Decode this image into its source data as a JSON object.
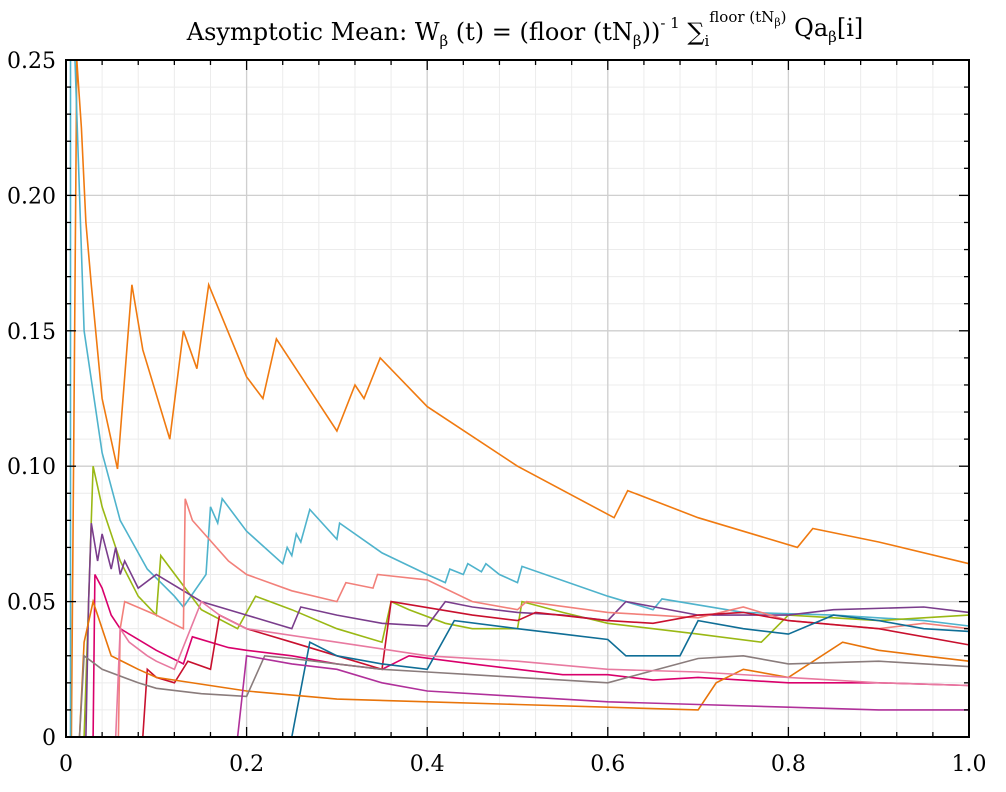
{
  "chart_data": {
    "type": "line",
    "title": {
      "main": "Asymptotic Mean: W",
      "w_sub": "β",
      "part2": " (t) = (floor (tN",
      "n_sub": "β",
      "part3": "))",
      "exp": "- 1",
      "sigma": " ∑",
      "i_sub": "i",
      "sum_sup": "floor (tN",
      "sum_sup_sub": "β",
      "sum_sup_close": ")",
      "qa": " Qa",
      "qa_sub": "β",
      "tail": "[i]"
    },
    "xlabel": "",
    "ylabel": "",
    "xlim": [
      0,
      1
    ],
    "ylim": [
      0,
      0.25
    ],
    "xticks": [
      0,
      0.2,
      0.4,
      0.6,
      0.8,
      1.0
    ],
    "xtick_labels": [
      "0",
      "0.2",
      "0.4",
      "0.6",
      "0.8",
      "1.0"
    ],
    "yticks": [
      0,
      0.05,
      0.1,
      0.15,
      0.2,
      0.25
    ],
    "ytick_labels": [
      "0",
      "0.05",
      "0.10",
      "0.15",
      "0.20",
      "0.25"
    ],
    "grid": true,
    "legend": "none",
    "series": [
      {
        "color": "#f07a10",
        "points": [
          [
            0.006,
            0
          ],
          [
            0.012,
            0.25
          ],
          [
            0.017,
            0.225
          ],
          [
            0.022,
            0.19
          ],
          [
            0.028,
            0.167
          ],
          [
            0.04,
            0.125
          ],
          [
            0.057,
            0.099
          ],
          [
            0.073,
            0.167
          ],
          [
            0.085,
            0.143
          ],
          [
            0.115,
            0.11
          ],
          [
            0.13,
            0.15
          ],
          [
            0.145,
            0.136
          ],
          [
            0.158,
            0.167
          ],
          [
            0.2,
            0.133
          ],
          [
            0.218,
            0.125
          ],
          [
            0.233,
            0.147
          ],
          [
            0.3,
            0.113
          ],
          [
            0.32,
            0.13
          ],
          [
            0.33,
            0.125
          ],
          [
            0.348,
            0.14
          ],
          [
            0.4,
            0.122
          ],
          [
            0.5,
            0.1
          ],
          [
            0.607,
            0.081
          ],
          [
            0.622,
            0.091
          ],
          [
            0.7,
            0.081
          ],
          [
            0.81,
            0.07
          ],
          [
            0.827,
            0.077
          ],
          [
            0.9,
            0.072
          ],
          [
            1.0,
            0.064
          ]
        ]
      },
      {
        "color": "#4fb3cc",
        "points": [
          [
            0.005,
            0
          ],
          [
            0.005,
            0.25
          ],
          [
            0.01,
            0.25
          ],
          [
            0.02,
            0.15
          ],
          [
            0.04,
            0.105
          ],
          [
            0.06,
            0.08
          ],
          [
            0.09,
            0.062
          ],
          [
            0.12,
            0.052
          ],
          [
            0.13,
            0.048
          ],
          [
            0.155,
            0.06
          ],
          [
            0.16,
            0.085
          ],
          [
            0.168,
            0.079
          ],
          [
            0.173,
            0.088
          ],
          [
            0.2,
            0.076
          ],
          [
            0.24,
            0.064
          ],
          [
            0.245,
            0.07
          ],
          [
            0.25,
            0.067
          ],
          [
            0.255,
            0.075
          ],
          [
            0.26,
            0.072
          ],
          [
            0.265,
            0.078
          ],
          [
            0.27,
            0.084
          ],
          [
            0.3,
            0.073
          ],
          [
            0.303,
            0.079
          ],
          [
            0.35,
            0.068
          ],
          [
            0.4,
            0.06
          ],
          [
            0.42,
            0.057
          ],
          [
            0.425,
            0.062
          ],
          [
            0.44,
            0.06
          ],
          [
            0.445,
            0.064
          ],
          [
            0.46,
            0.061
          ],
          [
            0.465,
            0.064
          ],
          [
            0.48,
            0.06
          ],
          [
            0.5,
            0.057
          ],
          [
            0.505,
            0.063
          ],
          [
            0.6,
            0.052
          ],
          [
            0.65,
            0.047
          ],
          [
            0.66,
            0.051
          ],
          [
            0.75,
            0.046
          ],
          [
            0.85,
            0.045
          ],
          [
            0.95,
            0.043
          ],
          [
            1.0,
            0.041
          ]
        ]
      },
      {
        "color": "#9ab814",
        "points": [
          [
            0.02,
            0
          ],
          [
            0.025,
            0.05
          ],
          [
            0.03,
            0.1
          ],
          [
            0.04,
            0.085
          ],
          [
            0.06,
            0.065
          ],
          [
            0.08,
            0.052
          ],
          [
            0.1,
            0.045
          ],
          [
            0.105,
            0.067
          ],
          [
            0.15,
            0.047
          ],
          [
            0.19,
            0.04
          ],
          [
            0.21,
            0.052
          ],
          [
            0.25,
            0.047
          ],
          [
            0.3,
            0.04
          ],
          [
            0.35,
            0.035
          ],
          [
            0.36,
            0.05
          ],
          [
            0.38,
            0.047
          ],
          [
            0.42,
            0.042
          ],
          [
            0.45,
            0.04
          ],
          [
            0.5,
            0.04
          ],
          [
            0.505,
            0.05
          ],
          [
            0.55,
            0.046
          ],
          [
            0.6,
            0.042
          ],
          [
            0.65,
            0.04
          ],
          [
            0.7,
            0.038
          ],
          [
            0.77,
            0.035
          ],
          [
            0.8,
            0.045
          ],
          [
            0.9,
            0.043
          ],
          [
            1.0,
            0.045
          ]
        ]
      },
      {
        "color": "#7a3d8c",
        "points": [
          [
            0.022,
            0
          ],
          [
            0.025,
            0.05
          ],
          [
            0.028,
            0.079
          ],
          [
            0.035,
            0.065
          ],
          [
            0.04,
            0.075
          ],
          [
            0.05,
            0.062
          ],
          [
            0.055,
            0.07
          ],
          [
            0.06,
            0.06
          ],
          [
            0.065,
            0.065
          ],
          [
            0.08,
            0.055
          ],
          [
            0.1,
            0.06
          ],
          [
            0.15,
            0.05
          ],
          [
            0.2,
            0.045
          ],
          [
            0.25,
            0.04
          ],
          [
            0.26,
            0.048
          ],
          [
            0.3,
            0.045
          ],
          [
            0.35,
            0.042
          ],
          [
            0.4,
            0.041
          ],
          [
            0.42,
            0.05
          ],
          [
            0.45,
            0.048
          ],
          [
            0.5,
            0.046
          ],
          [
            0.55,
            0.045
          ],
          [
            0.6,
            0.043
          ],
          [
            0.62,
            0.05
          ],
          [
            0.7,
            0.045
          ],
          [
            0.8,
            0.045
          ],
          [
            0.85,
            0.047
          ],
          [
            0.95,
            0.048
          ],
          [
            1.0,
            0.046
          ]
        ]
      },
      {
        "color": "#f2807a",
        "points": [
          [
            0.058,
            0
          ],
          [
            0.06,
            0.04
          ],
          [
            0.065,
            0.05
          ],
          [
            0.1,
            0.045
          ],
          [
            0.13,
            0.04
          ],
          [
            0.132,
            0.088
          ],
          [
            0.14,
            0.08
          ],
          [
            0.18,
            0.065
          ],
          [
            0.2,
            0.06
          ],
          [
            0.25,
            0.054
          ],
          [
            0.3,
            0.05
          ],
          [
            0.31,
            0.057
          ],
          [
            0.34,
            0.055
          ],
          [
            0.345,
            0.06
          ],
          [
            0.4,
            0.058
          ],
          [
            0.45,
            0.05
          ],
          [
            0.5,
            0.047
          ],
          [
            0.51,
            0.05
          ],
          [
            0.6,
            0.046
          ],
          [
            0.65,
            0.045
          ],
          [
            0.7,
            0.044
          ],
          [
            0.75,
            0.048
          ],
          [
            0.8,
            0.043
          ],
          [
            0.9,
            0.04
          ],
          [
            0.95,
            0.042
          ],
          [
            1.0,
            0.04
          ]
        ]
      },
      {
        "color": "#d9006b",
        "points": [
          [
            0.03,
            0
          ],
          [
            0.032,
            0.06
          ],
          [
            0.04,
            0.055
          ],
          [
            0.05,
            0.045
          ],
          [
            0.06,
            0.04
          ],
          [
            0.1,
            0.032
          ],
          [
            0.13,
            0.027
          ],
          [
            0.14,
            0.037
          ],
          [
            0.18,
            0.033
          ],
          [
            0.2,
            0.032
          ],
          [
            0.25,
            0.03
          ],
          [
            0.3,
            0.027
          ],
          [
            0.35,
            0.025
          ],
          [
            0.38,
            0.03
          ],
          [
            0.45,
            0.027
          ],
          [
            0.5,
            0.025
          ],
          [
            0.55,
            0.023
          ],
          [
            0.6,
            0.023
          ],
          [
            0.65,
            0.021
          ],
          [
            0.7,
            0.022
          ],
          [
            0.8,
            0.02
          ],
          [
            0.9,
            0.02
          ],
          [
            1.0,
            0.019
          ]
        ]
      },
      {
        "color": "#c8102e",
        "points": [
          [
            0.085,
            0
          ],
          [
            0.09,
            0.025
          ],
          [
            0.1,
            0.022
          ],
          [
            0.12,
            0.02
          ],
          [
            0.135,
            0.028
          ],
          [
            0.16,
            0.025
          ],
          [
            0.17,
            0.045
          ],
          [
            0.2,
            0.04
          ],
          [
            0.25,
            0.035
          ],
          [
            0.3,
            0.03
          ],
          [
            0.35,
            0.025
          ],
          [
            0.36,
            0.05
          ],
          [
            0.45,
            0.045
          ],
          [
            0.5,
            0.043
          ],
          [
            0.52,
            0.046
          ],
          [
            0.6,
            0.043
          ],
          [
            0.65,
            0.042
          ],
          [
            0.7,
            0.045
          ],
          [
            0.75,
            0.046
          ],
          [
            0.8,
            0.043
          ],
          [
            0.9,
            0.04
          ],
          [
            1.0,
            0.034
          ]
        ]
      },
      {
        "color": "#0f6e96",
        "points": [
          [
            0.25,
            0
          ],
          [
            0.27,
            0.035
          ],
          [
            0.3,
            0.03
          ],
          [
            0.35,
            0.027
          ],
          [
            0.4,
            0.025
          ],
          [
            0.43,
            0.043
          ],
          [
            0.5,
            0.04
          ],
          [
            0.55,
            0.038
          ],
          [
            0.6,
            0.036
          ],
          [
            0.62,
            0.03
          ],
          [
            0.68,
            0.03
          ],
          [
            0.7,
            0.043
          ],
          [
            0.75,
            0.04
          ],
          [
            0.8,
            0.038
          ],
          [
            0.85,
            0.045
          ],
          [
            0.9,
            0.043
          ],
          [
            0.95,
            0.04
          ],
          [
            1.0,
            0.039
          ]
        ]
      },
      {
        "color": "#e8740a",
        "points": [
          [
            0.015,
            0
          ],
          [
            0.02,
            0.035
          ],
          [
            0.03,
            0.05
          ],
          [
            0.05,
            0.03
          ],
          [
            0.08,
            0.025
          ],
          [
            0.1,
            0.022
          ],
          [
            0.2,
            0.017
          ],
          [
            0.3,
            0.014
          ],
          [
            0.4,
            0.013
          ],
          [
            0.5,
            0.012
          ],
          [
            0.6,
            0.011
          ],
          [
            0.7,
            0.01
          ],
          [
            0.72,
            0.02
          ],
          [
            0.75,
            0.025
          ],
          [
            0.8,
            0.022
          ],
          [
            0.86,
            0.035
          ],
          [
            0.9,
            0.032
          ],
          [
            0.95,
            0.03
          ],
          [
            1.0,
            0.028
          ]
        ]
      },
      {
        "color": "#8a7c7c",
        "points": [
          [
            0.015,
            0
          ],
          [
            0.02,
            0.03
          ],
          [
            0.04,
            0.025
          ],
          [
            0.08,
            0.02
          ],
          [
            0.1,
            0.018
          ],
          [
            0.15,
            0.016
          ],
          [
            0.2,
            0.015
          ],
          [
            0.22,
            0.03
          ],
          [
            0.25,
            0.029
          ],
          [
            0.3,
            0.027
          ],
          [
            0.35,
            0.025
          ],
          [
            0.4,
            0.024
          ],
          [
            0.45,
            0.023
          ],
          [
            0.5,
            0.022
          ],
          [
            0.55,
            0.021
          ],
          [
            0.6,
            0.02
          ],
          [
            0.7,
            0.029
          ],
          [
            0.75,
            0.03
          ],
          [
            0.8,
            0.027
          ],
          [
            0.9,
            0.028
          ],
          [
            1.0,
            0.026
          ]
        ]
      },
      {
        "color": "#e87aa0",
        "points": [
          [
            0.055,
            0
          ],
          [
            0.06,
            0.04
          ],
          [
            0.07,
            0.035
          ],
          [
            0.09,
            0.03
          ],
          [
            0.1,
            0.028
          ],
          [
            0.12,
            0.025
          ],
          [
            0.15,
            0.05
          ],
          [
            0.17,
            0.045
          ],
          [
            0.2,
            0.04
          ],
          [
            0.3,
            0.035
          ],
          [
            0.4,
            0.03
          ],
          [
            0.5,
            0.028
          ],
          [
            0.6,
            0.025
          ],
          [
            0.7,
            0.024
          ],
          [
            0.8,
            0.022
          ],
          [
            0.9,
            0.02
          ],
          [
            1.0,
            0.019
          ]
        ]
      },
      {
        "color": "#b0309a",
        "points": [
          [
            0.19,
            0
          ],
          [
            0.2,
            0.03
          ],
          [
            0.25,
            0.027
          ],
          [
            0.3,
            0.025
          ],
          [
            0.35,
            0.02
          ],
          [
            0.4,
            0.017
          ],
          [
            0.5,
            0.015
          ],
          [
            0.6,
            0.013
          ],
          [
            0.7,
            0.012
          ],
          [
            0.8,
            0.011
          ],
          [
            0.9,
            0.01
          ],
          [
            1.0,
            0.01
          ]
        ]
      }
    ]
  }
}
